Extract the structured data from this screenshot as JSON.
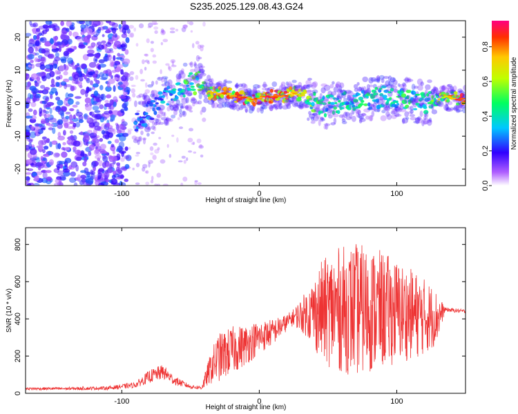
{
  "chart_data": [
    {
      "type": "heatmap",
      "title": "S235.2025.129.08.43.G24",
      "xlabel": "Height of straight line (km)",
      "ylabel": "Frequency (Hz)",
      "xlim": [
        -170,
        150
      ],
      "ylim": [
        -25,
        25
      ],
      "xticks": [
        -100,
        0,
        100
      ],
      "yticks": [
        -20,
        -10,
        0,
        10,
        20
      ],
      "colorbar": {
        "label": "Normalized spectral amplitude",
        "range": [
          0.0,
          0.95
        ],
        "ticks": [
          0.0,
          0.2,
          0.4,
          0.6,
          0.8
        ],
        "tick_labels": [
          "0.0",
          "0.2",
          "0.4",
          "0.6",
          "0.8"
        ],
        "colormap": "rainbow"
      },
      "ridge": {
        "x": [
          -85,
          -75,
          -65,
          -55,
          -45,
          -40,
          -35,
          -25,
          -15,
          -5,
          5,
          15,
          25,
          35,
          45,
          60,
          75,
          90,
          105,
          120,
          135,
          148
        ],
        "y": [
          -5,
          0,
          2,
          4,
          7,
          5,
          3,
          3,
          2,
          1,
          2,
          2,
          3,
          2,
          -1,
          0,
          1,
          2,
          1,
          0,
          2,
          1
        ],
        "amplitude": [
          0.3,
          0.35,
          0.4,
          0.5,
          0.6,
          0.55,
          0.75,
          0.85,
          0.9,
          0.85,
          0.95,
          0.9,
          0.8,
          0.65,
          0.5,
          0.45,
          0.5,
          0.45,
          0.5,
          0.5,
          0.75,
          0.95
        ]
      }
    },
    {
      "type": "line",
      "title": "",
      "xlabel": "Height of straight line (km)",
      "ylabel": "SNR (10 * v/v)",
      "xlim": [
        -170,
        150
      ],
      "ylim": [
        0,
        890
      ],
      "xticks": [
        -100,
        0,
        100
      ],
      "yticks": [
        0,
        200,
        400,
        600,
        800
      ],
      "series": [
        {
          "name": "SNR",
          "color": "#ee3333",
          "envelope": {
            "x": [
              -170,
              -140,
              -110,
              -90,
              -80,
              -70,
              -62,
              -50,
              -42,
              -35,
              -30,
              -20,
              -10,
              0,
              10,
              20,
              25,
              35,
              45,
              55,
              70,
              85,
              100,
              115,
              125,
              130,
              135,
              150
            ],
            "mean": [
              25,
              25,
              28,
              45,
              90,
              115,
              70,
              35,
              30,
              140,
              190,
              230,
              260,
              300,
              330,
              380,
              410,
              430,
              440,
              450,
              450,
              450,
              440,
              420,
              410,
              410,
              450,
              440
            ],
            "amp": [
              8,
              8,
              10,
              15,
              35,
              40,
              25,
              10,
              12,
              90,
              130,
              130,
              110,
              90,
              70,
              45,
              45,
              130,
              270,
              330,
              360,
              330,
              280,
              230,
              180,
              130,
              12,
              10
            ]
          }
        }
      ]
    }
  ]
}
